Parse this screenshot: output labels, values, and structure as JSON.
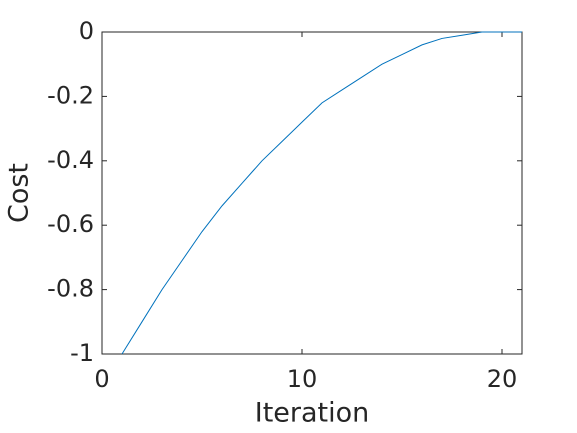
{
  "chart_data": {
    "type": "line",
    "xlabel": "Iteration",
    "ylabel": "Cost",
    "x": [
      1,
      2,
      3,
      4,
      5,
      6,
      7,
      8,
      9,
      10,
      11,
      12,
      13,
      14,
      15,
      16,
      17,
      18,
      19,
      20,
      21
    ],
    "series": [
      {
        "color": "#0072bd",
        "values": [
          -1,
          -0.9,
          -0.8,
          -0.71,
          -0.62,
          -0.54,
          -0.47,
          -0.4,
          -0.34,
          -0.28,
          -0.22,
          -0.18,
          -0.14,
          -0.1,
          -0.07,
          -0.04,
          -0.02,
          -0.01,
          0,
          0,
          0
        ]
      }
    ],
    "xlim": [
      0,
      21
    ],
    "xticks": [
      0,
      10,
      20
    ],
    "ylim": [
      -1,
      0
    ],
    "yticks": [
      -1,
      -0.8,
      -0.6,
      -0.4,
      -0.2,
      0
    ],
    "grid": false
  }
}
